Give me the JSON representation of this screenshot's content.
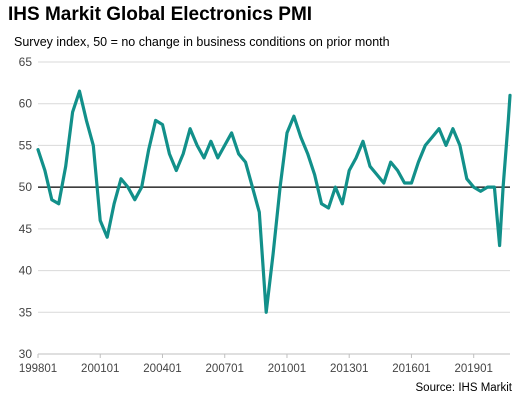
{
  "title": "IHS Markit Global Electronics PMI",
  "subtitle": "Survey index, 50 = no change in business conditions on prior month",
  "source": "Source: IHS Markit",
  "colors": {
    "line": "#12908a",
    "reference": "#000000",
    "grid": "#d9d9d9"
  },
  "chart_data": {
    "type": "line",
    "title": "IHS Markit Global Electronics PMI",
    "subtitle": "Survey index, 50 = no change in business conditions on prior month",
    "ylim": [
      30,
      65
    ],
    "yticks": [
      30,
      35,
      40,
      45,
      50,
      55,
      60,
      65
    ],
    "xlim": [
      "1998-01",
      "2020-10"
    ],
    "xticks": [
      "199801",
      "200101",
      "200401",
      "200701",
      "201001",
      "201301",
      "201601",
      "201901"
    ],
    "reference_line": 50,
    "grid": "horizontal",
    "series": [
      {
        "x": [
          "1998-01",
          "1998-05",
          "1998-09",
          "1999-01",
          "1999-05",
          "1999-09",
          "2000-01",
          "2000-05",
          "2000-09",
          "2001-01",
          "2001-05",
          "2001-09",
          "2002-01",
          "2002-05",
          "2002-09",
          "2003-01",
          "2003-05",
          "2003-09",
          "2004-01",
          "2004-05",
          "2004-09",
          "2005-01",
          "2005-05",
          "2005-09",
          "2006-01",
          "2006-05",
          "2006-09",
          "2007-01",
          "2007-05",
          "2007-09",
          "2008-01",
          "2008-05",
          "2008-09",
          "2009-01",
          "2009-05",
          "2009-09",
          "2010-01",
          "2010-05",
          "2010-09",
          "2011-01",
          "2011-05",
          "2011-09",
          "2012-01",
          "2012-05",
          "2012-09",
          "2013-01",
          "2013-05",
          "2013-09",
          "2014-01",
          "2014-05",
          "2014-09",
          "2015-01",
          "2015-05",
          "2015-09",
          "2016-01",
          "2016-05",
          "2016-09",
          "2017-01",
          "2017-05",
          "2017-09",
          "2018-01",
          "2018-05",
          "2018-09",
          "2019-01",
          "2019-05",
          "2019-09",
          "2020-01",
          "2020-04",
          "2020-06",
          "2020-09",
          "2020-10"
        ],
        "values": [
          54.5,
          52.0,
          48.5,
          48.0,
          52.5,
          59.0,
          61.5,
          58.0,
          55.0,
          46.0,
          44.0,
          48.0,
          51.0,
          50.0,
          48.5,
          50.0,
          54.5,
          58.0,
          57.5,
          54.0,
          52.0,
          54.0,
          57.0,
          55.0,
          53.5,
          55.5,
          53.5,
          55.0,
          56.5,
          54.0,
          53.0,
          50.0,
          47.0,
          35.0,
          42.0,
          50.0,
          56.5,
          58.5,
          56.0,
          54.0,
          51.5,
          48.0,
          47.5,
          50.0,
          48.0,
          52.0,
          53.5,
          55.5,
          52.5,
          51.5,
          50.5,
          53.0,
          52.0,
          50.5,
          50.5,
          53.0,
          55.0,
          56.0,
          57.0,
          55.0,
          57.0,
          55.0,
          51.0,
          50.0,
          49.5,
          50.0,
          50.0,
          43.0,
          50.0,
          58.0,
          61.0
        ]
      }
    ]
  }
}
